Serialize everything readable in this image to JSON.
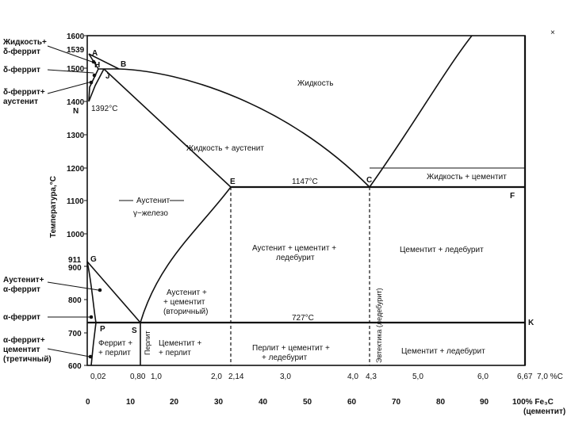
{
  "diagram": {
    "y_axis_title": "Температура,°С",
    "y_ticks": [
      "1600",
      "1539",
      "1500",
      "1400",
      "1300",
      "1200",
      "1100",
      "1000",
      "911",
      "900",
      "800",
      "700",
      "600"
    ],
    "x_ticks_carbon": [
      "0,02",
      "0,80",
      "1,0",
      "2,0",
      "2,14",
      "3,0",
      "4,0",
      "4,3",
      "5,0",
      "6,0",
      "6,67",
      "7,0 %С"
    ],
    "x_ticks_fe3c": [
      "0",
      "10",
      "20",
      "30",
      "40",
      "50",
      "60",
      "70",
      "80",
      "90",
      "100% Fe₃C"
    ],
    "x_axis_suffix": "(цементит)",
    "corner_mark": "×",
    "points": {
      "A": "A",
      "B": "B",
      "H": "H",
      "J": "J",
      "N": "N",
      "E": "E",
      "C": "C",
      "F": "F",
      "G": "G",
      "P": "P",
      "S": "S",
      "K": "K"
    },
    "temperatures": {
      "t1392": "1392°С",
      "t1147": "1147°С",
      "t727": "727°С"
    },
    "left_labels": {
      "liquid_delta": [
        "Жидкость+",
        "δ-феррит"
      ],
      "delta_ferrite": "δ-феррит",
      "delta_austenite": [
        "δ-феррит+",
        "аустенит"
      ],
      "austenite_alpha": [
        "Аустенит+",
        "α-феррит"
      ],
      "alpha_ferrite": "α-феррит",
      "alpha_cementite": [
        "α-феррит+",
        "цементит",
        "(третичный)"
      ]
    },
    "regions": {
      "liquid": "Жидкость",
      "liquid_austenite": "Жидкость + аустенит",
      "liquid_cementite": "Жидкость + цементит",
      "austenite": "Аустенит",
      "gamma_iron": "γ−железо",
      "aus_cem_ledeb": [
        "Аустенит + цементит +",
        "ледебурит"
      ],
      "cem_ledeb_upper": "Цементит + ледебурит",
      "aus_cem_secondary": [
        "Аустенит +",
        "+ цементит",
        "(вторичный)"
      ],
      "ferrite_pearlite": [
        "Феррит +",
        "+ перлит"
      ],
      "pearlite": "Перлит",
      "cem_pearlite": [
        "Цементит +",
        "+ перлит"
      ],
      "pearl_cem_ledeb": [
        "Перлит + цементит +",
        "+ ледебурит"
      ],
      "cem_ledeb_lower": "Цементит + ледебурит",
      "eutectic": "Эвтектика (ледебурит)"
    }
  }
}
